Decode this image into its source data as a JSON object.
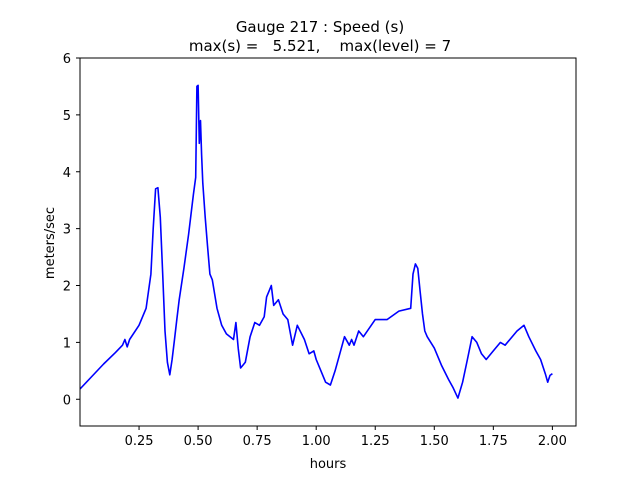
{
  "chart_data": {
    "type": "line",
    "title_line1": "Gauge 217 : Speed (s)",
    "title_line2": "max(s) =   5.521,    max(level) = 7",
    "xlabel": "hours",
    "ylabel": "meters/sec",
    "xlim": [
      0.0,
      2.1
    ],
    "ylim": [
      -0.47,
      6.0
    ],
    "xticks": [
      0.25,
      0.5,
      0.75,
      1.0,
      1.25,
      1.5,
      1.75,
      2.0
    ],
    "xtick_labels": [
      "0.25",
      "0.50",
      "0.75",
      "1.00",
      "1.25",
      "1.50",
      "1.75",
      "2.00"
    ],
    "yticks": [
      0,
      1,
      2,
      3,
      4,
      5,
      6
    ],
    "ytick_labels": [
      "0",
      "1",
      "2",
      "3",
      "4",
      "5",
      "6"
    ],
    "grid": false,
    "series": [
      {
        "color": "#0000ff",
        "x": [
          0.0,
          0.05,
          0.1,
          0.15,
          0.18,
          0.19,
          0.2,
          0.21,
          0.25,
          0.28,
          0.3,
          0.31,
          0.32,
          0.33,
          0.34,
          0.35,
          0.36,
          0.37,
          0.38,
          0.39,
          0.4,
          0.41,
          0.42,
          0.44,
          0.46,
          0.47,
          0.48,
          0.49,
          0.495,
          0.5,
          0.505,
          0.51,
          0.515,
          0.52,
          0.53,
          0.54,
          0.55,
          0.56,
          0.58,
          0.6,
          0.62,
          0.65,
          0.66,
          0.67,
          0.68,
          0.69,
          0.7,
          0.72,
          0.74,
          0.76,
          0.78,
          0.79,
          0.8,
          0.81,
          0.82,
          0.83,
          0.84,
          0.86,
          0.88,
          0.9,
          0.92,
          0.95,
          0.97,
          0.99,
          1.0,
          1.02,
          1.04,
          1.06,
          1.08,
          1.1,
          1.12,
          1.14,
          1.15,
          1.16,
          1.18,
          1.2,
          1.25,
          1.3,
          1.35,
          1.4,
          1.41,
          1.42,
          1.43,
          1.44,
          1.45,
          1.46,
          1.47,
          1.5,
          1.53,
          1.56,
          1.58,
          1.6,
          1.62,
          1.64,
          1.66,
          1.68,
          1.7,
          1.72,
          1.75,
          1.78,
          1.8,
          1.85,
          1.88,
          1.9,
          1.93,
          1.95,
          1.97,
          1.98,
          1.99,
          2.0
        ],
        "y": [
          0.18,
          0.4,
          0.62,
          0.82,
          0.95,
          1.05,
          0.92,
          1.05,
          1.3,
          1.6,
          2.2,
          3.0,
          3.7,
          3.72,
          3.2,
          2.2,
          1.2,
          0.65,
          0.43,
          0.7,
          1.05,
          1.4,
          1.75,
          2.3,
          2.9,
          3.25,
          3.6,
          3.9,
          5.5,
          5.52,
          4.5,
          4.9,
          4.3,
          3.8,
          3.2,
          2.7,
          2.2,
          2.1,
          1.6,
          1.3,
          1.15,
          1.05,
          1.35,
          0.9,
          0.55,
          0.6,
          0.65,
          1.1,
          1.35,
          1.3,
          1.45,
          1.8,
          1.9,
          2.0,
          1.65,
          1.7,
          1.75,
          1.5,
          1.4,
          0.95,
          1.3,
          1.05,
          0.8,
          0.85,
          0.7,
          0.5,
          0.3,
          0.25,
          0.5,
          0.8,
          1.1,
          0.95,
          1.05,
          0.95,
          1.2,
          1.1,
          1.4,
          1.4,
          1.55,
          1.6,
          2.2,
          2.38,
          2.3,
          1.9,
          1.5,
          1.2,
          1.1,
          0.9,
          0.6,
          0.35,
          0.2,
          0.02,
          0.3,
          0.7,
          1.1,
          1.0,
          0.8,
          0.7,
          0.85,
          1.0,
          0.95,
          1.2,
          1.3,
          1.1,
          0.85,
          0.7,
          0.45,
          0.3,
          0.42,
          0.45
        ]
      }
    ]
  }
}
